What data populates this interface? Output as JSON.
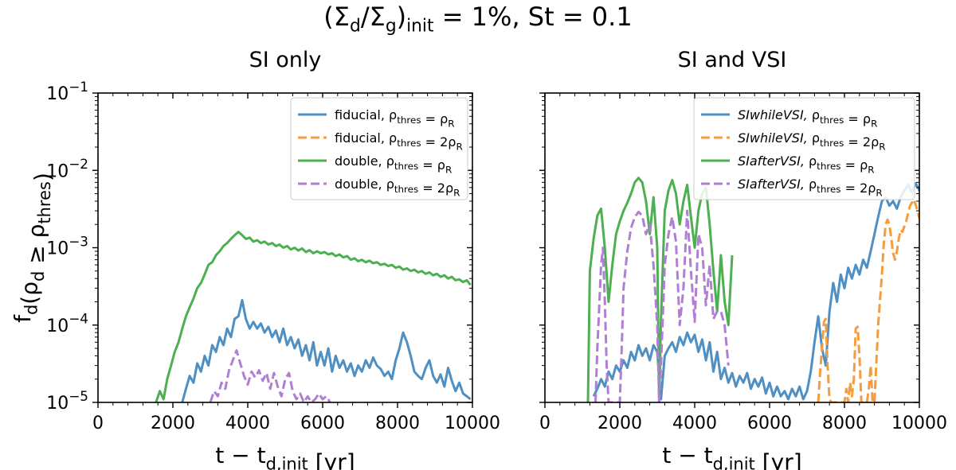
{
  "figure": {
    "suptitle": "(Σ_d/Σ_g)_init = 1%, St = 0.1"
  },
  "chart_data": [
    {
      "type": "line",
      "title": "SI only",
      "xlabel": "t − t_d,init [yr]",
      "ylabel": "f_d(ρ_d ≥ ρ_thres)",
      "xlim": [
        0,
        10000
      ],
      "ylim": [
        1e-05,
        0.1
      ],
      "yscale": "log",
      "xticks": [
        0,
        2000,
        4000,
        6000,
        8000,
        10000
      ],
      "yticks": [
        1e-05,
        0.0001,
        0.001,
        0.01,
        0.1
      ],
      "ytick_labels": [
        "10⁻⁵",
        "10⁻⁴",
        "10⁻³",
        "10⁻²",
        "10⁻¹"
      ],
      "grid": false,
      "legend_position": "top-right",
      "series": [
        {
          "name": "fiducial, ρ_thres = ρ_R",
          "color": "#4e8fc4",
          "dash": "solid",
          "x": [
            2250,
            2350,
            2450,
            2550,
            2650,
            2750,
            2850,
            2950,
            3050,
            3150,
            3250,
            3350,
            3450,
            3550,
            3650,
            3750,
            3850,
            3950,
            4050,
            4150,
            4250,
            4350,
            4450,
            4550,
            4650,
            4750,
            4850,
            4950,
            5050,
            5150,
            5250,
            5350,
            5450,
            5550,
            5650,
            5750,
            5850,
            5950,
            6050,
            6150,
            6250,
            6350,
            6450,
            6550,
            6650,
            6750,
            6850,
            6950,
            7050,
            7150,
            7250,
            7350,
            7450,
            7550,
            7650,
            7750,
            7850,
            7950,
            8050,
            8150,
            8250,
            8350,
            8450,
            8550,
            8650,
            8750,
            8850,
            8950,
            9050,
            9150,
            9250,
            9350,
            9450,
            9550,
            9650,
            9750,
            9850,
            9950
          ],
          "y": [
            1e-05,
            1.5e-05,
            2.2e-05,
            1.8e-05,
            3.2e-05,
            2.5e-05,
            4e-05,
            3e-05,
            5.5e-05,
            4.5e-05,
            7e-05,
            5.5e-05,
            9e-05,
            7e-05,
            0.00012,
            0.00013,
            0.00021,
            0.00012,
            9e-05,
            0.00011,
            9e-05,
            0.000105,
            8e-05,
            9.5e-05,
            7e-05,
            8.5e-05,
            6e-05,
            9e-05,
            5.5e-05,
            7e-05,
            5e-05,
            6.5e-05,
            4e-05,
            5.5e-05,
            3.5e-05,
            6e-05,
            3e-05,
            4.5e-05,
            3e-05,
            5e-05,
            2.5e-05,
            4e-05,
            2.8e-05,
            3.5e-05,
            2.5e-05,
            3.2e-05,
            2.2e-05,
            3e-05,
            2.5e-05,
            3.5e-05,
            2.8e-05,
            3.8e-05,
            3e-05,
            2.7e-05,
            2.2e-05,
            2.5e-05,
            2e-05,
            3.5e-05,
            5e-05,
            8e-05,
            6e-05,
            4e-05,
            2.5e-05,
            2.2e-05,
            2e-05,
            2.8e-05,
            3.5e-05,
            2.2e-05,
            1.8e-05,
            2.3e-05,
            1.6e-05,
            2.8e-05,
            1.9e-05,
            1.4e-05,
            1.8e-05,
            1.3e-05,
            1.2e-05,
            1.1e-05
          ]
        },
        {
          "name": "fiducial, ρ_thres = 2ρ_R",
          "color": "#f59d3d",
          "dash": "dashed",
          "x": [],
          "y": []
        },
        {
          "name": "double, ρ_thres = ρ_R",
          "color": "#4caf50",
          "dash": "solid",
          "x": [
            1550,
            1650,
            1750,
            1850,
            1950,
            2050,
            2150,
            2250,
            2350,
            2450,
            2550,
            2650,
            2750,
            2850,
            2950,
            3050,
            3150,
            3250,
            3350,
            3450,
            3550,
            3650,
            3750,
            3850,
            3950,
            4050,
            4150,
            4250,
            4350,
            4450,
            4550,
            4650,
            4750,
            4850,
            4950,
            5050,
            5150,
            5250,
            5350,
            5450,
            5550,
            5650,
            5750,
            5850,
            5950,
            6050,
            6150,
            6250,
            6350,
            6450,
            6550,
            6650,
            6750,
            6850,
            6950,
            7050,
            7150,
            7250,
            7350,
            7450,
            7550,
            7650,
            7750,
            7850,
            7950,
            8050,
            8150,
            8250,
            8350,
            8450,
            8550,
            8650,
            8750,
            8850,
            8950,
            9050,
            9150,
            9250,
            9350,
            9450,
            9550,
            9650,
            9750,
            9850,
            9950
          ],
          "y": [
            1e-05,
            1.4e-05,
            1.1e-05,
            2e-05,
            3e-05,
            4.5e-05,
            6e-05,
            9e-05,
            0.00013,
            0.00017,
            0.00022,
            0.0003,
            0.00035,
            0.00045,
            0.0006,
            0.00065,
            0.0008,
            0.0009,
            0.00105,
            0.00115,
            0.0013,
            0.00145,
            0.0016,
            0.00145,
            0.0013,
            0.00135,
            0.0012,
            0.00125,
            0.00115,
            0.0012,
            0.0011,
            0.00115,
            0.00105,
            0.0011,
            0.001,
            0.00105,
            0.00095,
            0.001,
            0.00092,
            0.00098,
            0.00088,
            0.00093,
            0.00085,
            0.0009,
            0.00085,
            0.00088,
            0.00082,
            0.00085,
            0.00078,
            0.00082,
            0.00075,
            0.00078,
            0.0007,
            0.00073,
            0.00067,
            0.0007,
            0.00065,
            0.00068,
            0.00063,
            0.00065,
            0.0006,
            0.00062,
            0.00058,
            0.0006,
            0.00055,
            0.00057,
            0.00052,
            0.00054,
            0.0005,
            0.00052,
            0.00048,
            0.0005,
            0.00046,
            0.00048,
            0.00044,
            0.00046,
            0.00042,
            0.00044,
            0.0004,
            0.00042,
            0.00038,
            0.00039,
            0.00036,
            0.00038,
            0.00033
          ]
        },
        {
          "name": "double, ρ_thres = 2ρ_R",
          "color": "#b07fd4",
          "dash": "dashed",
          "x": [
            3000,
            3100,
            3200,
            3300,
            3400,
            3500,
            3600,
            3700,
            3800,
            3900,
            4000,
            4100,
            4200,
            4300,
            4400,
            4500,
            4600,
            4700,
            4800,
            4900,
            5000,
            5100,
            5200,
            5300,
            5400,
            5500,
            5600,
            5700,
            5800,
            5900,
            6000,
            6100,
            6200
          ],
          "y": [
            1e-05,
            1.4e-05,
            1.2e-05,
            1.8e-05,
            1.5e-05,
            2.6e-05,
            3.5e-05,
            4.7e-05,
            3.2e-05,
            2.2e-05,
            1.7e-05,
            2.5e-05,
            2.1e-05,
            2.6e-05,
            1.9e-05,
            2.4e-05,
            1.5e-05,
            2.4e-05,
            1.6e-05,
            1.2e-05,
            2e-05,
            2.4e-05,
            1.4e-05,
            1.1e-05,
            1.3e-05,
            1e-05,
            1.2e-05,
            1e-05,
            1.1e-05,
            1.3e-05,
            1.1e-05,
            1.2e-05,
            1e-05
          ]
        }
      ]
    },
    {
      "type": "line",
      "title": "SI and VSI",
      "xlabel": "t − t_d,init [yr]",
      "ylabel": "",
      "xlim": [
        0,
        10000
      ],
      "ylim": [
        1e-05,
        0.1
      ],
      "yscale": "log",
      "xticks": [
        0,
        2000,
        4000,
        6000,
        8000,
        10000
      ],
      "grid": false,
      "legend_position": "top-right",
      "series": [
        {
          "name": "SIwhileVSI, ρ_thres = ρ_R",
          "color": "#4e8fc4",
          "dash": "solid",
          "x": [
            1300,
            1400,
            1500,
            1600,
            1700,
            1800,
            1900,
            2000,
            2100,
            2200,
            2300,
            2400,
            2500,
            2600,
            2700,
            2800,
            2900,
            3000,
            3100,
            3200,
            3300,
            3400,
            3500,
            3600,
            3700,
            3800,
            3900,
            4000,
            4100,
            4200,
            4300,
            4400,
            4500,
            4600,
            4700,
            4800,
            4900,
            5000,
            5100,
            5200,
            5300,
            5400,
            5500,
            5600,
            5700,
            5800,
            5900,
            6000,
            6100,
            6200,
            6300,
            6400,
            6500,
            6600,
            6700,
            6800,
            6900,
            7000,
            7100,
            7200,
            7300,
            7400,
            7500,
            7600,
            7700,
            7800,
            7900,
            8000,
            8100,
            8200,
            8300,
            8400,
            8500,
            8600,
            8700,
            8800,
            8900,
            9000,
            9100,
            9200,
            9300,
            9400,
            9500,
            9600,
            9700,
            9800,
            9900,
            10000
          ],
          "y": [
            1.2e-05,
            1.5e-05,
            2e-05,
            1.6e-05,
            2.5e-05,
            2e-05,
            3e-05,
            2.5e-05,
            3.5e-05,
            2.8e-05,
            4.5e-05,
            3.5e-05,
            5.5e-05,
            4e-05,
            5e-05,
            3.5e-05,
            5.5e-05,
            4.5e-05,
            1.1e-05,
            4e-05,
            5e-05,
            6e-05,
            4.5e-05,
            7e-05,
            5.5e-05,
            8e-05,
            6e-05,
            7.5e-05,
            4.5e-05,
            6.5e-05,
            3.5e-05,
            6e-05,
            2.5e-05,
            4.5e-05,
            2e-05,
            2.8e-05,
            1.8e-05,
            2.4e-05,
            1.6e-05,
            2.2e-05,
            1.8e-05,
            2.4e-05,
            1.5e-05,
            2e-05,
            1.6e-05,
            2.1e-05,
            1.3e-05,
            1.8e-05,
            1.2e-05,
            1.6e-05,
            1.2e-05,
            1.4e-05,
            1.1e-05,
            1.5e-05,
            1.2e-05,
            1.6e-05,
            1.1e-05,
            1.4e-05,
            2.5e-05,
            6e-05,
            0.00013,
            5e-05,
            3e-05,
            0.00015,
            0.00035,
            0.0002,
            0.00045,
            0.0003,
            0.00055,
            0.0004,
            0.0006,
            0.00045,
            0.0007,
            0.00055,
            0.0009,
            0.0015,
            0.0025,
            0.004,
            0.0045,
            0.0035,
            0.004,
            0.0032,
            0.0045,
            0.0055,
            0.0065,
            0.0052,
            0.0068,
            0.0055
          ]
        },
        {
          "name": "SIwhileVSI, ρ_thres = 2ρ_R",
          "color": "#f59d3d",
          "dash": "dashed",
          "x": [
            7300,
            7350,
            7400,
            7450,
            7500,
            7550,
            7600,
            7650,
            7700,
            7800,
            7900,
            8000,
            8050,
            8100,
            8150,
            8200,
            8250,
            8300,
            8350,
            8400,
            8450,
            8500,
            8550,
            8600,
            8650,
            8700,
            8750,
            8800,
            8900,
            9000,
            9050,
            9100,
            9150,
            9200,
            9250,
            9300,
            9350,
            9400,
            9450,
            9500,
            9550,
            9600,
            9650,
            9700,
            9750,
            9800,
            9850,
            9900,
            9950,
            10000
          ],
          "y": [
            1e-05,
            2.5e-05,
            5e-05,
            0.00011,
            0.00012,
            3e-05,
            1.1e-05,
            1e-05,
            1e-05,
            1e-05,
            1e-05,
            1e-05,
            1.5e-05,
            1e-05,
            1.8e-05,
            1.2e-05,
            2e-05,
            9e-05,
            9.5e-05,
            4e-05,
            1e-05,
            1e-05,
            1e-05,
            1e-05,
            1.5e-05,
            3e-05,
            1e-05,
            1e-05,
            0.0001,
            0.00045,
            0.0011,
            0.002,
            0.0023,
            0.002,
            0.0013,
            0.00085,
            0.0007,
            0.0009,
            0.0013,
            0.0017,
            0.0016,
            0.0019,
            0.0022,
            0.0028,
            0.0035,
            0.0038,
            0.0042,
            0.0036,
            0.003,
            0.0024
          ]
        },
        {
          "name": "SIafterVSI, ρ_thres = ρ_R",
          "color": "#4caf50",
          "dash": "solid",
          "x": [
            1150,
            1200,
            1300,
            1400,
            1500,
            1600,
            1700,
            1800,
            1900,
            2000,
            2100,
            2200,
            2300,
            2400,
            2500,
            2600,
            2700,
            2800,
            2900,
            3000,
            3050,
            3100,
            3200,
            3300,
            3400,
            3500,
            3600,
            3700,
            3800,
            3900,
            4000,
            4100,
            4200,
            4300,
            4400,
            4500,
            4600,
            4700,
            4800,
            4900,
            5000
          ],
          "y": [
            1e-05,
            0.0005,
            0.0013,
            0.0026,
            0.0032,
            0.001,
            0.0002,
            0.0006,
            0.0015,
            0.0022,
            0.003,
            0.0038,
            0.005,
            0.007,
            0.008,
            0.007,
            0.004,
            0.0015,
            0.0045,
            0.001,
            1e-05,
            0.00012,
            0.003,
            0.0055,
            0.0075,
            0.005,
            0.002,
            0.004,
            0.0065,
            0.0025,
            0.001,
            0.003,
            0.005,
            0.006,
            0.002,
            0.0005,
            0.00015,
            0.0008,
            0.0002,
            0.0001,
            0.0008
          ]
        },
        {
          "name": "SIafterVSI, ρ_thres = 2ρ_R",
          "color": "#b07fd4",
          "dash": "dashed",
          "x": [
            1350,
            1400,
            1500,
            1550,
            1600,
            1650,
            1700,
            1800,
            1900,
            2000,
            2050,
            2100,
            2200,
            2300,
            2400,
            2500,
            2600,
            2700,
            2800,
            2900,
            3000,
            3050,
            3100,
            3200,
            3300,
            3400,
            3500,
            3600,
            3700,
            3800,
            3900,
            4000,
            4100,
            4200,
            4300,
            4400,
            4500,
            4600,
            4700,
            4800,
            4900
          ],
          "y": [
            1e-05,
            5e-05,
            0.0006,
            0.001,
            0.0002,
            3e-05,
            1e-05,
            1e-05,
            1e-05,
            1e-05,
            5e-05,
            0.0003,
            0.0009,
            0.0018,
            0.0025,
            0.0029,
            0.0026,
            0.0015,
            0.002,
            0.0006,
            0.0001,
            1e-05,
            3e-05,
            0.0006,
            0.0015,
            0.0025,
            0.0012,
            0.0001,
            0.0003,
            0.003,
            0.0005,
            0.00011,
            0.0015,
            0.001,
            0.00018,
            0.0006,
            0.00012,
            0.00015,
            0.00015,
            0.0001,
            3e-05
          ]
        }
      ]
    }
  ]
}
